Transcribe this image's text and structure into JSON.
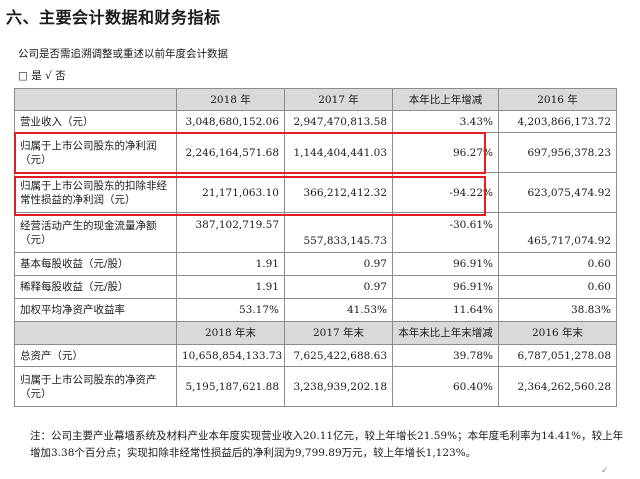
{
  "heading": "六、主要会计数据和财务指标",
  "question": "公司是否需追溯调整或重述以前年度会计数据",
  "answer": "□ 是 √ 否",
  "header1": [
    "",
    "2018 年",
    "2017 年",
    "本年比上年增减",
    "2016 年"
  ],
  "rows1": [
    {
      "label": "营业收入（元）",
      "v": [
        "3,048,680,152.06",
        "2,947,470,813.58",
        "3.43%",
        "4,203,866,173.72"
      ]
    },
    {
      "label": "归属于上市公司股东的净利润（元）",
      "v": [
        "2,246,164,571.68",
        "1,144,404,441.03",
        "96.27%",
        "697,956,378.23"
      ]
    },
    {
      "label": "归属于上市公司股东的扣除非经常性损益的净利润（元）",
      "v": [
        "21,171,063.10",
        "366,212,412.32",
        "-94.22%",
        "623,075,474.92"
      ]
    },
    {
      "label": "经营活动产生的现金流量净额（元）",
      "v": [
        "387,102,719.57",
        "557,833,145.73",
        "-30.61%",
        "465,717,074.92"
      ]
    },
    {
      "label": "基本每股收益（元/股）",
      "v": [
        "1.91",
        "0.97",
        "96.91%",
        "0.60"
      ]
    },
    {
      "label": "稀释每股收益（元/股）",
      "v": [
        "1.91",
        "0.97",
        "96.91%",
        "0.60"
      ]
    },
    {
      "label": "加权平均净资产收益率",
      "v": [
        "53.17%",
        "41.53%",
        "11.64%",
        "38.83%"
      ]
    }
  ],
  "header2": [
    "",
    "2018 年末",
    "2017 年末",
    "本年末比上年末增减",
    "2016 年末"
  ],
  "rows2": [
    {
      "label": "总资产（元）",
      "v": [
        "10,658,854,133.73",
        "7,625,422,688.63",
        "39.78%",
        "6,787,051,278.08"
      ]
    },
    {
      "label": "归属于上市公司股东的净资产（元）",
      "v": [
        "5,195,187,621.88",
        "3,238,939,202.18",
        "60.40%",
        "2,364,262,560.28"
      ]
    }
  ],
  "note": "注：公司主要产业幕墙系统及材料产业本年度实现营业收入20.11亿元，较上年增长21.59%；本年度毛利率为14.41%，较上年增加3.38个百分点；实现扣除非经常性损益后的净利润为9,799.89万元，较上年增长1,123%。",
  "colors": {
    "highlight_box": "#e02020",
    "header_bg": "#d9d9d9",
    "border": "#8c8c8c"
  }
}
